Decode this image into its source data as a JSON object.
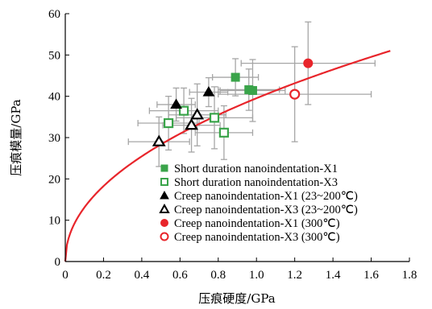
{
  "chart_data": {
    "type": "scatter",
    "xlabel": "压痕硬度/GPa",
    "ylabel": "压痕模量/GPa",
    "xlim": [
      0,
      1.8
    ],
    "ylim": [
      0,
      60
    ],
    "xticks": [
      "0",
      "0.2",
      "0.4",
      "0.6",
      "0.8",
      "1.0",
      "1.2",
      "1.4",
      "1.6",
      "1.8"
    ],
    "yticks": [
      "0",
      "10",
      "20",
      "30",
      "40",
      "50",
      "60"
    ],
    "grid": false,
    "legend_position": "bottom-right",
    "fit_curve": {
      "color": "#e8252b",
      "x_range": [
        0,
        1.7
      ],
      "points": [
        [
          0,
          0
        ],
        [
          0.02,
          6.3
        ],
        [
          0.05,
          10
        ],
        [
          0.1,
          14
        ],
        [
          0.2,
          19.8
        ],
        [
          0.3,
          24.3
        ],
        [
          0.4,
          28
        ],
        [
          0.5,
          31.3
        ],
        [
          0.6,
          34.3
        ],
        [
          0.7,
          37.1
        ],
        [
          0.8,
          39.6
        ],
        [
          0.9,
          42
        ],
        [
          1.0,
          44.3
        ],
        [
          1.1,
          46.4
        ],
        [
          1.2,
          48.5
        ],
        [
          1.3,
          50.5
        ],
        [
          1.4,
          52.4
        ],
        [
          1.5,
          54.2
        ],
        [
          1.6,
          56
        ],
        [
          1.7,
          51
        ]
      ]
    },
    "series": [
      {
        "name": "Short duration nanoindentation-X1",
        "marker": "square-filled",
        "color": "#3aa44a",
        "points": [
          {
            "x": 0.89,
            "y": 44.6,
            "xerr": 0.12,
            "yerr": 4.5
          },
          {
            "x": 0.96,
            "y": 41.6,
            "xerr": 0.16,
            "yerr": 5.0
          },
          {
            "x": 0.98,
            "y": 41.4,
            "xerr": 0.17,
            "yerr": 7.5
          }
        ]
      },
      {
        "name": "Short duration nanoindentation-X3",
        "marker": "square-open",
        "color": "#3aa44a",
        "points": [
          {
            "x": 0.54,
            "y": 33.5,
            "xerr": 0.16,
            "yerr": 6.5
          },
          {
            "x": 0.62,
            "y": 36.5,
            "xerr": 0.18,
            "yerr": 5.5
          },
          {
            "x": 0.78,
            "y": 34.8,
            "xerr": 0.2,
            "yerr": 7.5
          },
          {
            "x": 0.83,
            "y": 31.2,
            "xerr": 0.15,
            "yerr": 6.5
          }
        ]
      },
      {
        "name": "Creep nanoindentation-X1 (23~200℃)",
        "marker": "triangle-filled",
        "color": "#000000",
        "points": [
          {
            "x": 0.58,
            "y": 38.0,
            "xerr": 0.1,
            "yerr": 4.0
          },
          {
            "x": 0.75,
            "y": 41.0,
            "xerr": 0.1,
            "yerr": 3.5
          }
        ]
      },
      {
        "name": "Creep nanoindentation-X3 (23~200℃)",
        "marker": "triangle-open",
        "color": "#000000",
        "points": [
          {
            "x": 0.49,
            "y": 29.0,
            "xerr": 0.16,
            "yerr": 6.0
          },
          {
            "x": 0.66,
            "y": 33.0,
            "xerr": 0.15,
            "yerr": 6.5
          },
          {
            "x": 0.69,
            "y": 35.5,
            "xerr": 0.15,
            "yerr": 7.5
          }
        ]
      },
      {
        "name": "Creep nanoindentation-X1 (300℃)",
        "marker": "circle-filled",
        "color": "#e8252b",
        "points": [
          {
            "x": 1.27,
            "y": 48.0,
            "xerr": 0.35,
            "yerr": 10.0
          }
        ]
      },
      {
        "name": "Creep nanoindentation-X3 (300℃)",
        "marker": "circle-open",
        "color": "#e8252b",
        "points": [
          {
            "x": 1.2,
            "y": 40.5,
            "xerr": 0.4,
            "yerr": 11.5
          }
        ]
      }
    ]
  }
}
